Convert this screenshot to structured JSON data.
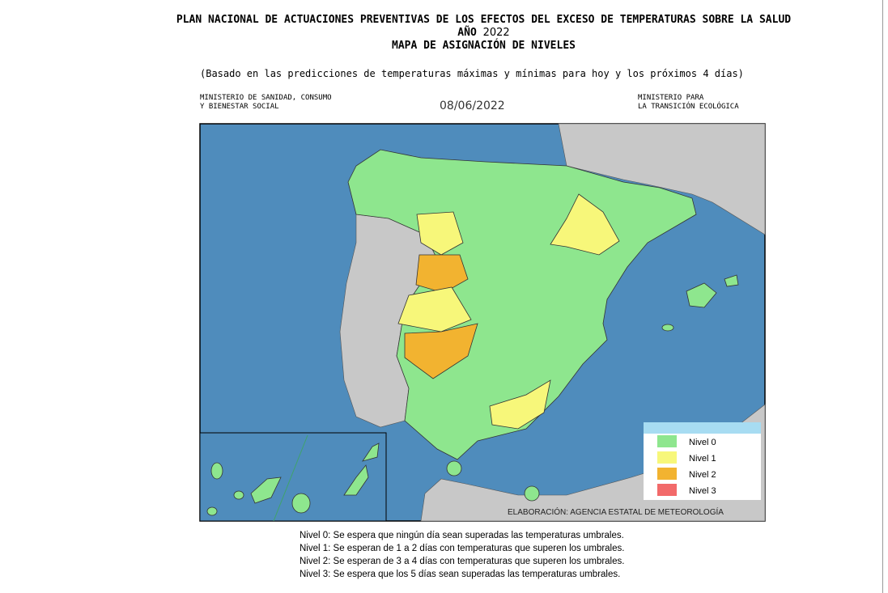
{
  "header": {
    "title": "PLAN NACIONAL DE ACTUACIONES PREVENTIVAS DE LOS EFECTOS DEL EXCESO DE TEMPERATURAS SOBRE LA SALUD",
    "year_label": "AÑO",
    "year": "2022",
    "subtitle": "MAPA DE ASIGNACIÓN DE NIVELES",
    "note": "(Basado en las predicciones de temperaturas máximas y mínimas para hoy y los próximos 4 días)"
  },
  "ministry_left": [
    "MINISTERIO DE SANIDAD, CONSUMO",
    "Y BIENESTAR SOCIAL"
  ],
  "date": "08/06/2022",
  "ministry_right": [
    "MINISTERIO PARA",
    "LA TRANSICIÓN ECOLÓGICA"
  ],
  "legend": [
    {
      "label": "Nivel 0",
      "color": "#8ee68e"
    },
    {
      "label": "Nivel 1",
      "color": "#f7f77a"
    },
    {
      "label": "Nivel 2",
      "color": "#f2b330"
    },
    {
      "label": "Nivel 3",
      "color": "#f26a6a"
    }
  ],
  "credit": "ELABORACIÓN: AGENCIA ESTATAL DE METEOROLOGÍA",
  "descriptions": [
    "Nivel 0: Se espera que ningún día sean superadas las temperaturas umbrales.",
    "Nivel 1:  Se esperan de 1  a 2 días con temperaturas que superen los umbrales.",
    "Nivel 2: Se esperan de 3 a 4 días con temperaturas que superen los umbrales.",
    "Nivel 3: Se espera que los 5 días sean superadas las temperaturas umbrales."
  ]
}
